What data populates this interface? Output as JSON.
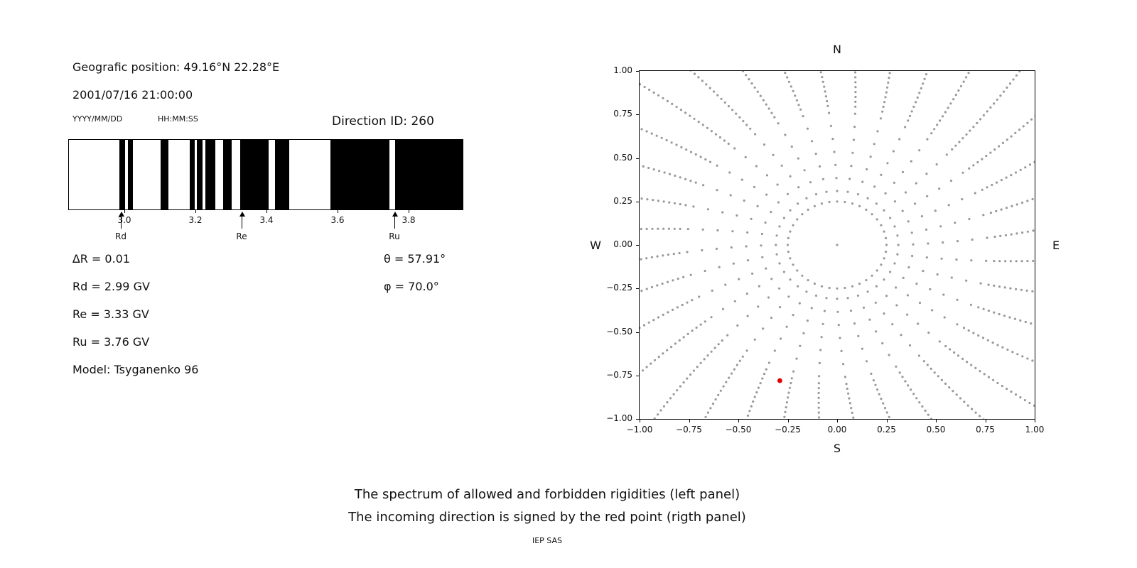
{
  "header": {
    "position": "Geografic position: 49.16°N 22.28°E",
    "datetime": "2001/07/16 21:00:00",
    "date_format": "YYYY/MM/DD",
    "time_format": "HH:MM:SS",
    "direction_id": "Direction ID: 260"
  },
  "params": {
    "delta_r": "∆R = 0.01",
    "rd": "Rd = 2.99 GV",
    "re": "Re = 3.33 GV",
    "ru": "Ru = 3.76 GV",
    "model": "Model: Tsyganenko 96",
    "theta": "θ = 57.91°",
    "phi": "φ = 70.0°"
  },
  "caption": {
    "line1": "The spectrum of allowed and forbidden rigidities (left panel)",
    "line2": "The incoming direction is signed by the red point (rigth panel)",
    "credit": "IEP SAS"
  },
  "chart_data": [
    {
      "type": "bar",
      "title": "Spectrum of allowed (black) and forbidden (white) rigidities",
      "x_range_gv": [
        2.844,
        3.952
      ],
      "x_ticks": {
        "values": [
          3.0,
          3.2,
          3.4,
          3.6,
          3.8
        ],
        "labels": [
          "3.0",
          "3.2",
          "3.4",
          "3.6",
          "3.8"
        ]
      },
      "black_bands_gv": [
        [
          2.986,
          3.002
        ],
        [
          3.01,
          3.024
        ],
        [
          3.102,
          3.124
        ],
        [
          3.184,
          3.198
        ],
        [
          3.204,
          3.22
        ],
        [
          3.228,
          3.256
        ],
        [
          3.278,
          3.302
        ],
        [
          3.326,
          3.406
        ],
        [
          3.424,
          3.464
        ],
        [
          3.58,
          3.746
        ],
        [
          3.762,
          3.952
        ]
      ],
      "markers": [
        {
          "label": "Rd",
          "value": 2.99
        },
        {
          "label": "Re",
          "value": 3.33
        },
        {
          "label": "Ru",
          "value": 3.76
        }
      ],
      "bar_color": "#000000"
    },
    {
      "type": "scatter",
      "title": "Incoming direction map",
      "xlim": [
        -1,
        1
      ],
      "ylim": [
        -1,
        1
      ],
      "x_ticks": {
        "values": [
          -1,
          -0.75,
          -0.5,
          -0.25,
          0,
          0.25,
          0.5,
          0.75,
          1
        ],
        "labels": [
          "−1.00",
          "−0.75",
          "−0.50",
          "−0.25",
          "0.00",
          "0.25",
          "0.50",
          "0.75",
          "1.00"
        ]
      },
      "y_ticks": {
        "values": [
          1,
          0.75,
          0.5,
          0.25,
          0,
          -0.25,
          -0.5,
          -0.75,
          -1
        ],
        "labels": [
          "1.00",
          "0.75",
          "0.50",
          "0.25",
          "0.00",
          "−0.25",
          "−0.50",
          "−0.75",
          "−1.00"
        ]
      },
      "compass": {
        "top": "N",
        "bottom": "S",
        "left": "W",
        "right": "E"
      },
      "red_point": {
        "x": -0.29,
        "y": -0.78
      },
      "gray_dots": {
        "pattern": "36 radial spokes of small dots with dense outer tails, inner dotted ring and center dot",
        "spokes": 36,
        "ring_radius": 0.25,
        "ring_points": 40,
        "center_point": true,
        "spoke_r_start": 0.31,
        "inner_step": 0.075,
        "inner_count": 7,
        "tail_r_start": 0.8,
        "tail_step": 0.028,
        "tail_count": 24,
        "curvature": 0.12
      },
      "colors": {
        "gray": "#999999",
        "red": "#dd0000"
      }
    }
  ]
}
